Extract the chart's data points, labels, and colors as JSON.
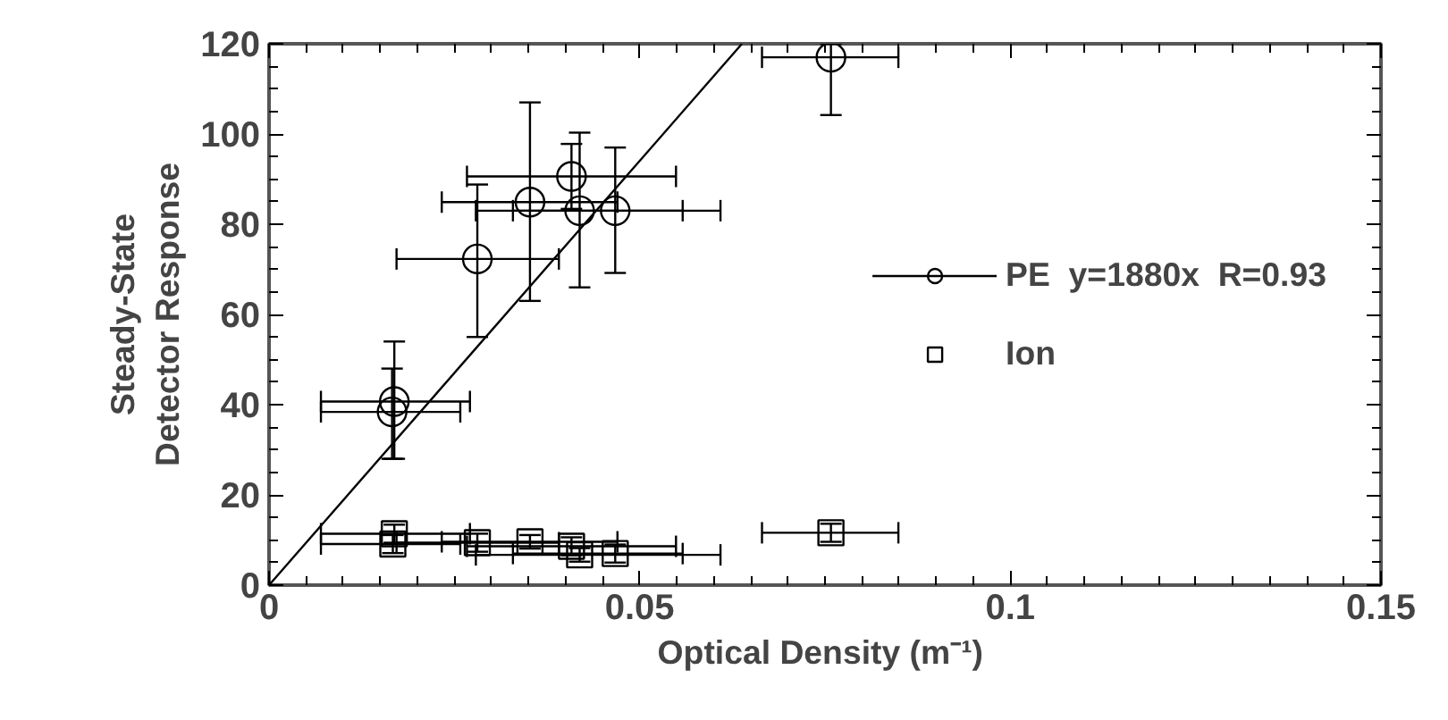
{
  "chart_data": {
    "type": "scatter",
    "xlabel": "Optical Density  (m⁻¹)",
    "ylabel": "Steady-State\nDetector Response",
    "xlim": [
      0,
      0.15
    ],
    "ylim": [
      0,
      120
    ],
    "xticks": [
      0,
      0.05,
      0.1,
      0.15
    ],
    "yticks": [
      0,
      20,
      40,
      60,
      80,
      100,
      120
    ],
    "grid": false,
    "legend": "right",
    "series": [
      {
        "name": "PE  y=1880x  R=0.93",
        "color": "#000000",
        "marker": "circle",
        "x": [
          0.0169,
          0.0166,
          0.0281,
          0.0352,
          0.0408,
          0.0419,
          0.0467,
          0.0758
        ],
        "values": [
          40.7,
          38.4,
          72.3,
          84.9,
          90.6,
          83.0,
          83.0,
          117
        ],
        "errors": [
          [
            28,
            54
          ],
          [
            28,
            48
          ],
          [
            55,
            88.8
          ],
          [
            63,
            107
          ],
          [
            83.4,
            97.8
          ],
          [
            66,
            100.3
          ],
          [
            69.2,
            97
          ],
          [
            104.2,
            120
          ]
        ],
        "xerrors": [
          [
            0.007,
            0.0271
          ],
          [
            0.007,
            0.0258
          ],
          [
            0.0172,
            0.0391
          ],
          [
            0.0233,
            0.047
          ],
          [
            0.0267,
            0.0549
          ],
          [
            0.0279,
            0.0609
          ],
          [
            0.0329,
            0.0558
          ],
          [
            0.0665,
            0.0849
          ]
        ]
      },
      {
        "name": "Ion",
        "color": "#000000",
        "marker": "square",
        "x": [
          0.0169,
          0.0167,
          0.0281,
          0.0352,
          0.0408,
          0.0419,
          0.0467,
          0.0758
        ],
        "values": [
          11.4,
          9.1,
          9.4,
          9.6,
          8.6,
          6.7,
          7.0,
          11.6
        ],
        "errors": [
          2,
          2,
          2,
          1.5,
          2,
          1.5,
          2,
          2
        ],
        "xerrors": [
          [
            0.007,
            0.0271
          ],
          [
            0.007,
            0.0258
          ],
          [
            0.0172,
            0.0391
          ],
          [
            0.0233,
            0.047
          ],
          [
            0.0267,
            0.0549
          ],
          [
            0.0279,
            0.0609
          ],
          [
            0.0329,
            0.0558
          ],
          [
            0.0665,
            0.0849
          ]
        ]
      },
      {
        "type": "line",
        "color": "#000000",
        "marker": "none",
        "line_style": "solid",
        "x": [
          0,
          0.0638
        ],
        "values": [
          0,
          120
        ]
      }
    ]
  }
}
